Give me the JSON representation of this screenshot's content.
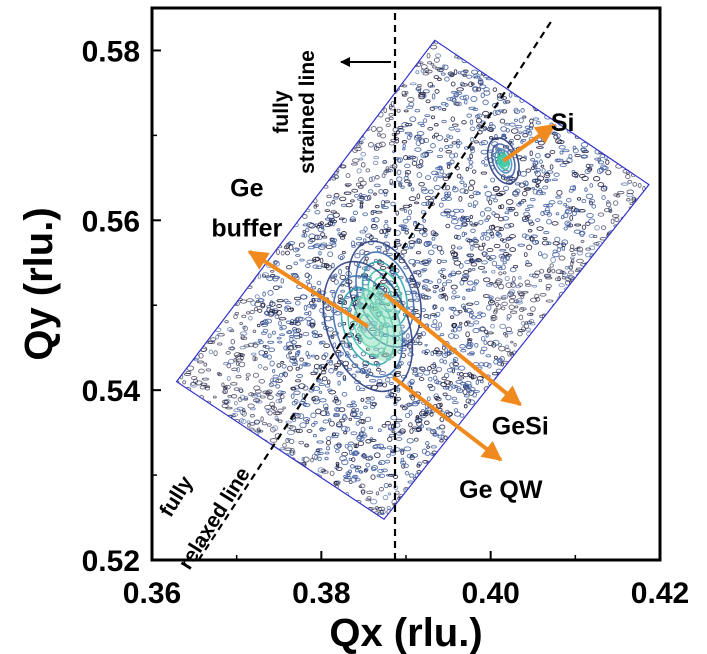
{
  "chart_data": {
    "type": "heatmap",
    "subtype": "reciprocal space map (contour)",
    "title": "",
    "xlabel": "Qx (rlu.)",
    "ylabel": "Qy (rlu.)",
    "xlim": [
      0.36,
      0.42
    ],
    "ylim": [
      0.52,
      0.585
    ],
    "x_ticks": [
      0.36,
      0.38,
      0.4,
      0.42
    ],
    "x_tick_labels": [
      "0.36",
      "0.38",
      "0.40",
      "0.42"
    ],
    "y_ticks": [
      0.52,
      0.54,
      0.56,
      0.58
    ],
    "y_tick_labels": [
      "0.52",
      "0.54",
      "0.56",
      "0.58"
    ],
    "grid": false,
    "scan_region": [
      {
        "x": 0.3874,
        "y": 0.5248
      },
      {
        "x": 0.4187,
        "y": 0.5642
      },
      {
        "x": 0.3934,
        "y": 0.5812
      },
      {
        "x": 0.3629,
        "y": 0.541
      }
    ],
    "reference_lines": [
      {
        "label_lines": [
          "fully",
          "strained line"
        ],
        "style": "dashed",
        "points": [
          {
            "x": 0.3887,
            "y": 0.52
          },
          {
            "x": 0.3887,
            "y": 0.585
          }
        ]
      },
      {
        "label_lines": [
          "fully",
          "relaxed line"
        ],
        "style": "dashed",
        "points": [
          {
            "x": 0.3655,
            "y": 0.52
          },
          {
            "x": 0.4072,
            "y": 0.5835
          }
        ]
      }
    ],
    "peaks": [
      {
        "name": "Si",
        "x": 0.4015,
        "y": 0.567
      },
      {
        "name": "GeSi",
        "x": 0.3875,
        "y": 0.5513
      },
      {
        "name": "Ge buffer",
        "x": 0.3855,
        "y": 0.5475
      },
      {
        "name": "Ge QW",
        "x": 0.3885,
        "y": 0.5415
      }
    ],
    "annotations": [
      {
        "text": "Si",
        "x": 0.4085,
        "y": 0.5705
      },
      {
        "text_lines": [
          "Ge",
          "buffer"
        ],
        "x": 0.3712,
        "y": 0.5628
      },
      {
        "text": "GeSi",
        "x": 0.4035,
        "y": 0.5348
      },
      {
        "text": "Ge QW",
        "x": 0.4012,
        "y": 0.5273
      }
    ],
    "colors": {
      "contour_background": "#1a1a3c",
      "contour_mid": "#3d5a9e",
      "contour_peak": "#3cc9a6",
      "region_outline": "#3333cc",
      "arrow": "#f08a1e",
      "axes": "#000000"
    }
  }
}
